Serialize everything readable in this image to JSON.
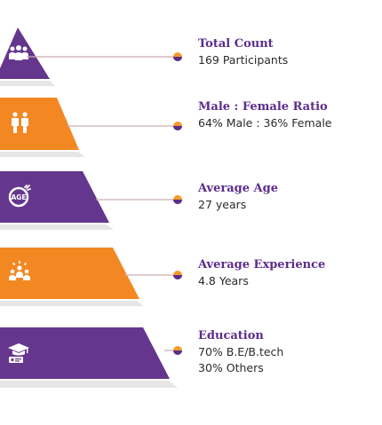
{
  "colors": {
    "purple": "#65368d",
    "orange": "#f38822",
    "title": "#5b2d8c",
    "connector_line": "#c9adb5",
    "dot_outer": "#f59b2a",
    "dot_inner": "#5b2d8c"
  },
  "tiers": [
    {
      "title": "Total Count",
      "lines": [
        "169 Participants"
      ],
      "icon": "participants-icon",
      "color": "purple"
    },
    {
      "title": "Male : Female Ratio",
      "lines": [
        "64% Male : 36% Female"
      ],
      "icon": "male-female-icon",
      "color": "orange"
    },
    {
      "title": "Average Age",
      "lines": [
        "27 years"
      ],
      "icon": "age-icon",
      "icon_text": "AGE",
      "color": "purple"
    },
    {
      "title": "Average Experience",
      "lines": [
        "4.8 Years"
      ],
      "icon": "team-experience-icon",
      "color": "orange"
    },
    {
      "title": "Education",
      "lines": [
        "70% B.E/B.tech",
        "30% Others"
      ],
      "icon": "graduation-icon",
      "color": "purple"
    }
  ]
}
